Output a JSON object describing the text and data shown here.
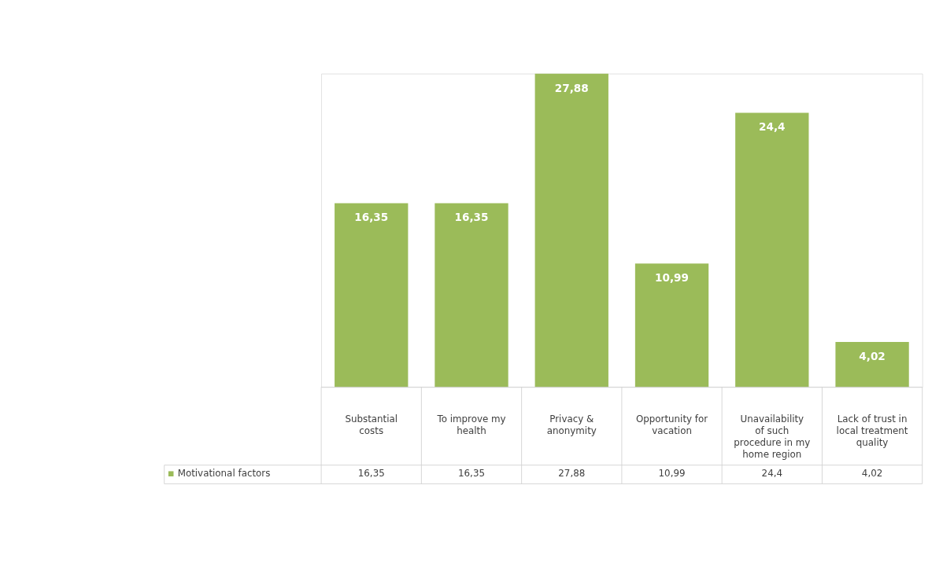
{
  "chart_data": {
    "type": "bar",
    "categories": [
      "Substantial costs",
      "To improve my health",
      "Privacy & anonymity",
      "Opportunity for vacation",
      "Unavailability of such procedure in my home region",
      "Lack of trust in local treatment quality"
    ],
    "series": [
      {
        "name": "Motivational factors",
        "color": "#9bbb59",
        "values": [
          16.35,
          16.35,
          27.88,
          10.99,
          24.4,
          4.02
        ],
        "value_labels": [
          "16,35",
          "16,35",
          "27,88",
          "10,99",
          "24,4",
          "4,02"
        ]
      }
    ],
    "legend": "bottom left"
  }
}
